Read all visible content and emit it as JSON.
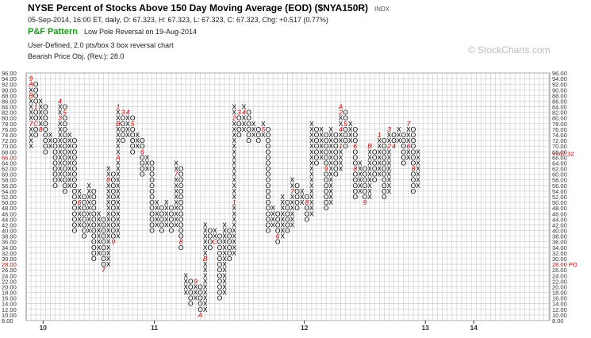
{
  "header": {
    "title": "NYSE Percent of Stocks Above 150 Day Moving Average (EOD) ($NYA150R)",
    "index_tag": "INDX",
    "quote_line": "05-Sep-2014, 16:00 ET, daily, O: 67.323, H: 67.323, L: 67.323, C: 67.323, Chg: +0.517 (0.77%)",
    "pattern_name": "P&F Pattern",
    "pattern_text": "Low Pole Reversal on 19-Aug-2014",
    "chart_type_line": "User-Defined, 2.0 pts/box 3 box reversal chart",
    "price_objective": "Bearish Price Obj. (Rev.): 28.0"
  },
  "watermark": "© StockCharts.com",
  "colors": {
    "x_mark": "#000000",
    "o_mark": "#000000",
    "month_marker": "#cc0000",
    "current_price": "#cc0000",
    "price_objective": "#cc0000",
    "grid": "#c8c8c8",
    "pattern_green": "#1a9a1a"
  },
  "chart_data": {
    "type": "point-and-figure",
    "box_size": 2.0,
    "reversal": 3,
    "ylim": [
      8,
      96
    ],
    "y_ticks": [
      "8.00",
      "10.00",
      "12.00",
      "14.00",
      "16.00",
      "18.00",
      "20.00",
      "22.00",
      "24.00",
      "26.00",
      "28.00",
      "30.00",
      "32.00",
      "34.00",
      "36.00",
      "38.00",
      "40.00",
      "42.00",
      "44.00",
      "46.00",
      "48.00",
      "50.00",
      "52.00",
      "54.00",
      "56.00",
      "58.00",
      "60.00",
      "62.00",
      "64.00",
      "66.00",
      "68.00",
      "70.00",
      "72.00",
      "74.00",
      "76.00",
      "78.00",
      "80.00",
      "82.00",
      "84.00",
      "86.00",
      "88.00",
      "90.00",
      "92.00",
      "94.00",
      "96.00"
    ],
    "year_labels": [
      {
        "label": "10",
        "column": 3
      },
      {
        "label": "11",
        "column": 26
      },
      {
        "label": "12",
        "column": 57
      },
      {
        "label": "13",
        "column": 82
      },
      {
        "label": "14",
        "column": 92
      }
    ],
    "columns": [
      {
        "type": "X",
        "low": 70,
        "high": 94,
        "marks": [
          {
            "price": 94,
            "label": "9"
          },
          {
            "price": 92,
            "label": "A"
          },
          {
            "price": 88,
            "label": "B"
          },
          {
            "price": 78,
            "label": "7"
          }
        ]
      },
      {
        "type": "O",
        "low": 74,
        "high": 92,
        "marks": [
          {
            "price": 84,
            "label": "1"
          },
          {
            "price": 78,
            "label": "C"
          }
        ]
      },
      {
        "type": "X",
        "low": 76,
        "high": 86,
        "marks": [
          {
            "price": 76,
            "label": "8"
          }
        ]
      },
      {
        "type": "O",
        "low": 68,
        "high": 84,
        "marks": []
      },
      {
        "type": "X",
        "low": 70,
        "high": 74,
        "marks": []
      },
      {
        "type": "O",
        "low": 56,
        "high": 72,
        "marks": []
      },
      {
        "type": "X",
        "low": 58,
        "high": 86,
        "marks": [
          {
            "price": 86,
            "label": "4"
          },
          {
            "price": 80,
            "label": "3"
          }
        ]
      },
      {
        "type": "O",
        "low": 54,
        "high": 84,
        "marks": [
          {
            "price": 82,
            "label": "5"
          }
        ]
      },
      {
        "type": "X",
        "low": 56,
        "high": 74,
        "marks": []
      },
      {
        "type": "O",
        "low": 40,
        "high": 72,
        "marks": []
      },
      {
        "type": "X",
        "low": 42,
        "high": 54,
        "marks": [
          {
            "price": 50,
            "label": "6"
          }
        ]
      },
      {
        "type": "O",
        "low": 38,
        "high": 52,
        "marks": []
      },
      {
        "type": "X",
        "low": 40,
        "high": 56,
        "marks": []
      },
      {
        "type": "O",
        "low": 30,
        "high": 54,
        "marks": []
      },
      {
        "type": "X",
        "low": 32,
        "high": 46,
        "marks": []
      },
      {
        "type": "O",
        "low": 26,
        "high": 44,
        "marks": [
          {
            "price": 26,
            "label": "7"
          }
        ]
      },
      {
        "type": "X",
        "low": 28,
        "high": 62,
        "marks": [
          {
            "price": 58,
            "label": "8"
          }
        ]
      },
      {
        "type": "O",
        "low": 36,
        "high": 60,
        "marks": [
          {
            "price": 36,
            "label": "9"
          }
        ]
      },
      {
        "type": "X",
        "low": 38,
        "high": 84,
        "marks": [
          {
            "price": 84,
            "label": "1"
          },
          {
            "price": 78,
            "label": "B"
          },
          {
            "price": 66,
            "label": "A"
          }
        ]
      },
      {
        "type": "O",
        "low": 72,
        "high": 82,
        "marks": [
          {
            "price": 82,
            "label": "3"
          }
        ]
      },
      {
        "type": "X",
        "low": 74,
        "high": 82,
        "marks": [
          {
            "price": 82,
            "label": "4"
          }
        ]
      },
      {
        "type": "O",
        "low": 68,
        "high": 80,
        "marks": [
          {
            "price": 78,
            "label": "5"
          }
        ]
      },
      {
        "type": "X",
        "low": 70,
        "high": 74,
        "marks": []
      },
      {
        "type": "O",
        "low": 60,
        "high": 72,
        "marks": [
          {
            "price": 68,
            "label": "6"
          }
        ]
      },
      {
        "type": "X",
        "low": 62,
        "high": 66,
        "marks": []
      },
      {
        "type": "O",
        "low": 40,
        "high": 64,
        "marks": []
      },
      {
        "type": "X",
        "low": 42,
        "high": 50,
        "marks": []
      },
      {
        "type": "O",
        "low": 40,
        "high": 48,
        "marks": []
      },
      {
        "type": "X",
        "low": 42,
        "high": 50,
        "marks": []
      },
      {
        "type": "O",
        "low": 40,
        "high": 48,
        "marks": []
      },
      {
        "type": "X",
        "low": 42,
        "high": 64,
        "marks": [
          {
            "price": 60,
            "label": "7"
          }
        ]
      },
      {
        "type": "O",
        "low": 34,
        "high": 62,
        "marks": [
          {
            "price": 36,
            "label": "8"
          }
        ]
      },
      {
        "type": "X",
        "low": 18,
        "high": 24,
        "marks": []
      },
      {
        "type": "O",
        "low": 14,
        "high": 22,
        "marks": []
      },
      {
        "type": "X",
        "low": 16,
        "high": 22,
        "marks": [
          {
            "price": 22,
            "label": "9"
          }
        ]
      },
      {
        "type": "O",
        "low": 10,
        "high": 20,
        "marks": [
          {
            "price": 10,
            "label": "A"
          }
        ]
      },
      {
        "type": "X",
        "low": 12,
        "high": 42,
        "marks": [
          {
            "price": 30,
            "label": "B"
          }
        ]
      },
      {
        "type": "O",
        "low": 34,
        "high": 40,
        "marks": []
      },
      {
        "type": "X",
        "low": 36,
        "high": 40,
        "marks": [
          {
            "price": 36,
            "label": "C"
          }
        ]
      },
      {
        "type": "O",
        "low": 16,
        "high": 38,
        "marks": []
      },
      {
        "type": "X",
        "low": 18,
        "high": 42,
        "marks": []
      },
      {
        "type": "O",
        "low": 30,
        "high": 40,
        "marks": []
      },
      {
        "type": "X",
        "low": 32,
        "high": 84,
        "marks": [
          {
            "price": 80,
            "label": "2"
          },
          {
            "price": 50,
            "label": "1"
          }
        ]
      },
      {
        "type": "O",
        "low": 74,
        "high": 82,
        "marks": [
          {
            "price": 82,
            "label": "3"
          }
        ]
      },
      {
        "type": "X",
        "low": 76,
        "high": 84,
        "marks": [
          {
            "price": 82,
            "label": "4"
          }
        ]
      },
      {
        "type": "O",
        "low": 72,
        "high": 82,
        "marks": []
      },
      {
        "type": "X",
        "low": 74,
        "high": 78,
        "marks": []
      },
      {
        "type": "O",
        "low": 72,
        "high": 76,
        "marks": []
      },
      {
        "type": "X",
        "low": 74,
        "high": 78,
        "marks": [
          {
            "price": 76,
            "label": "5"
          }
        ]
      },
      {
        "type": "O",
        "low": 40,
        "high": 76,
        "marks": []
      },
      {
        "type": "X",
        "low": 42,
        "high": 48,
        "marks": []
      },
      {
        "type": "O",
        "low": 36,
        "high": 46,
        "marks": [
          {
            "price": 38,
            "label": "6"
          }
        ]
      },
      {
        "type": "X",
        "low": 38,
        "high": 52,
        "marks": []
      },
      {
        "type": "O",
        "low": 40,
        "high": 50,
        "marks": []
      },
      {
        "type": "X",
        "low": 42,
        "high": 58,
        "marks": [
          {
            "price": 54,
            "label": "7"
          }
        ]
      },
      {
        "type": "O",
        "low": 48,
        "high": 56,
        "marks": []
      },
      {
        "type": "X",
        "low": 50,
        "high": 54,
        "marks": []
      },
      {
        "type": "O",
        "low": 44,
        "high": 52,
        "marks": [
          {
            "price": 50,
            "label": "8"
          }
        ]
      },
      {
        "type": "X",
        "low": 46,
        "high": 78,
        "marks": []
      },
      {
        "type": "O",
        "low": 64,
        "high": 76,
        "marks": []
      },
      {
        "type": "X",
        "low": 66,
        "high": 76,
        "marks": []
      },
      {
        "type": "O",
        "low": 48,
        "high": 74,
        "marks": [
          {
            "price": 62,
            "label": "9"
          }
        ]
      },
      {
        "type": "X",
        "low": 50,
        "high": 76,
        "marks": []
      },
      {
        "type": "O",
        "low": 60,
        "high": 74,
        "marks": []
      },
      {
        "type": "X",
        "low": 62,
        "high": 84,
        "marks": [
          {
            "price": 84,
            "label": "A"
          },
          {
            "price": 82,
            "label": "2"
          },
          {
            "price": 76,
            "label": "4"
          },
          {
            "price": 70,
            "label": "1"
          }
        ]
      },
      {
        "type": "O",
        "low": 70,
        "high": 82,
        "marks": [
          {
            "price": 78,
            "label": "5"
          }
        ]
      },
      {
        "type": "X",
        "low": 72,
        "high": 78,
        "marks": []
      },
      {
        "type": "O",
        "low": 52,
        "high": 76,
        "marks": [
          {
            "price": 70,
            "label": "6"
          },
          {
            "price": 62,
            "label": "8"
          }
        ]
      },
      {
        "type": "X",
        "low": 54,
        "high": 64,
        "marks": []
      },
      {
        "type": "O",
        "low": 50,
        "high": 62,
        "marks": [
          {
            "price": 50,
            "label": "9"
          }
        ]
      },
      {
        "type": "X",
        "low": 52,
        "high": 70,
        "marks": [
          {
            "price": 70,
            "label": "B"
          }
        ]
      },
      {
        "type": "O",
        "low": 58,
        "high": 68,
        "marks": []
      },
      {
        "type": "X",
        "low": 60,
        "high": 74,
        "marks": [
          {
            "price": 74,
            "label": "1"
          }
        ]
      },
      {
        "type": "O",
        "low": 52,
        "high": 72,
        "marks": []
      },
      {
        "type": "X",
        "low": 54,
        "high": 76,
        "marks": [
          {
            "price": 76,
            "label": "3"
          },
          {
            "price": 70,
            "label": "2"
          }
        ]
      },
      {
        "type": "O",
        "low": 70,
        "high": 74,
        "marks": [
          {
            "price": 70,
            "label": "4"
          }
        ]
      },
      {
        "type": "X",
        "low": 72,
        "high": 76,
        "marks": []
      },
      {
        "type": "O",
        "low": 64,
        "high": 74,
        "marks": []
      },
      {
        "type": "X",
        "low": 66,
        "high": 78,
        "marks": [
          {
            "price": 78,
            "label": "7"
          },
          {
            "price": 70,
            "label": "6"
          }
        ]
      },
      {
        "type": "O",
        "low": 54,
        "high": 76,
        "marks": [
          {
            "price": 62,
            "label": "8"
          }
        ]
      },
      {
        "type": "X",
        "low": 56,
        "high": 68,
        "marks": []
      }
    ],
    "current_price": {
      "value": 67.323,
      "label": "<<67.32",
      "axis_label": "66.00"
    },
    "price_objective": {
      "value": 28.0,
      "label": "28.00 PO",
      "axis_label": "28.00"
    }
  }
}
